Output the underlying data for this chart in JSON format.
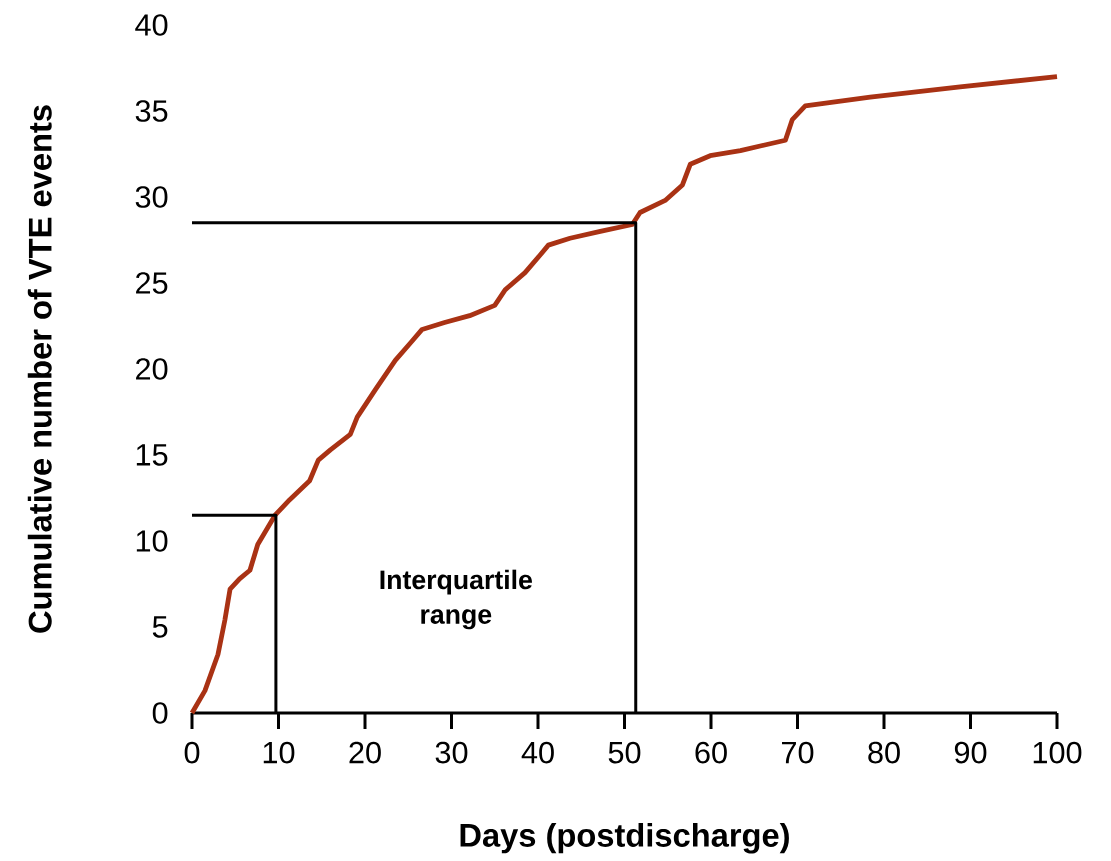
{
  "chart_data": {
    "type": "line",
    "xlabel": "Days (postdischarge)",
    "ylabel": "Cumulative number of VTE events",
    "annotations": [
      "Interquartile range"
    ],
    "xlim": [
      0,
      100
    ],
    "ylim": [
      0,
      40
    ],
    "xticks": [
      0,
      10,
      20,
      30,
      40,
      50,
      60,
      70,
      80,
      90,
      100
    ],
    "yticks": [
      0,
      5,
      10,
      15,
      20,
      25,
      30,
      35,
      40
    ],
    "marker": "none",
    "line_style": "solid",
    "series": [
      {
        "color": "#a93214",
        "x": [
          0,
          1.5,
          3,
          3.8,
          4.4,
          5.5,
          6.7,
          7.6,
          9.6,
          11.3,
          13.6,
          14.6,
          16,
          18.3,
          19.1,
          21.2,
          23.5,
          25.4,
          26.6,
          29.2,
          32.1,
          35,
          36.2,
          38.5,
          40.2,
          41.2,
          43.7,
          47.2,
          50.9,
          51.8,
          54.7,
          56.7,
          57.6,
          59.9,
          63.4,
          68.6,
          69.4,
          70.9,
          78.4,
          88.8,
          100
        ],
        "values": [
          0,
          1.3,
          3.4,
          5.4,
          7.2,
          7.8,
          8.3,
          9.8,
          11.5,
          12.4,
          13.5,
          14.7,
          15.3,
          16.2,
          17.2,
          18.8,
          20.5,
          21.6,
          22.3,
          22.7,
          23.1,
          23.7,
          24.6,
          25.6,
          26.6,
          27.2,
          27.6,
          28,
          28.4,
          29.1,
          29.8,
          30.7,
          31.9,
          32.4,
          32.7,
          33.3,
          34.5,
          35.3,
          35.8,
          36.4,
          37
        ]
      },
      {
        "color": "#000000",
        "x": [
          0,
          9.7,
          9.7
        ],
        "values": [
          11.5,
          11.5,
          0
        ]
      },
      {
        "color": "#000000",
        "x": [
          0,
          51.3,
          51.3
        ],
        "values": [
          28.5,
          28.5,
          0
        ]
      }
    ]
  }
}
